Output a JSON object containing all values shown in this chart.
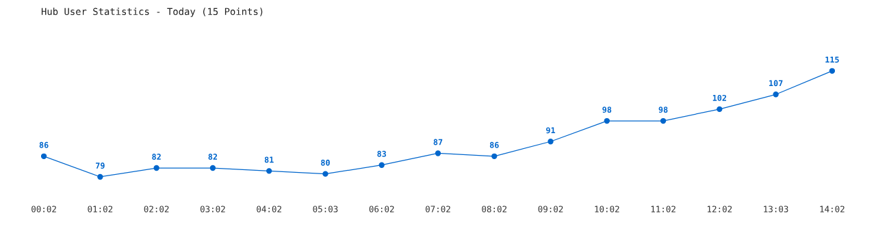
{
  "chart_data": {
    "type": "line",
    "title": "Hub User Statistics - Today (15 Points)",
    "categories": [
      "00:02",
      "01:02",
      "02:02",
      "03:02",
      "04:02",
      "05:03",
      "06:02",
      "07:02",
      "08:02",
      "09:02",
      "10:02",
      "11:02",
      "12:02",
      "13:03",
      "14:02"
    ],
    "series": [
      {
        "color": "#0066cc",
        "values": [
          86,
          79,
          82,
          82,
          81,
          80,
          83,
          87,
          86,
          91,
          98,
          98,
          102,
          107,
          115
        ]
      }
    ],
    "data_labels": true,
    "marker": "circle",
    "line_style": "solid",
    "grid": false,
    "legend": false,
    "tick_labels": "x"
  }
}
